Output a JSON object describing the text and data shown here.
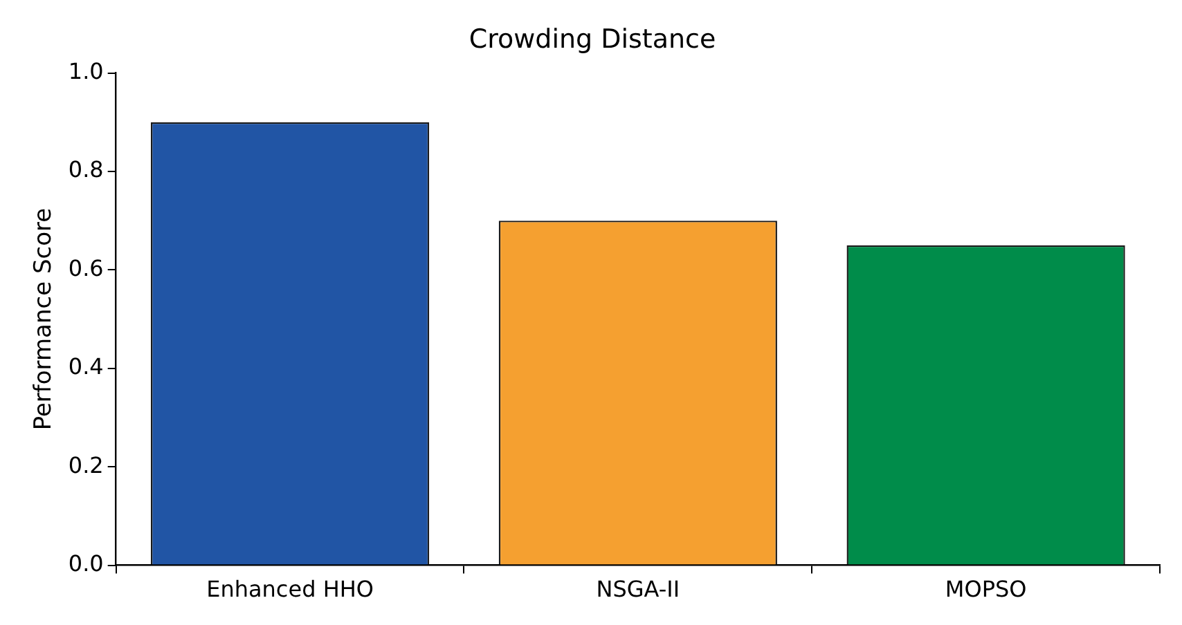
{
  "chart_data": {
    "type": "bar",
    "title": "Crowding Distance",
    "ylabel": "Performance Score",
    "categories": [
      "Enhanced HHO",
      "NSGA-II",
      "MOPSO"
    ],
    "values": [
      0.9,
      0.7,
      0.65
    ],
    "colors": [
      "#2155a5",
      "#f5a030",
      "#008c4a"
    ],
    "ylim": [
      0,
      1
    ],
    "yticks": [
      {
        "value": 0,
        "label": "0.0"
      },
      {
        "value": 0.2,
        "label": "0.2"
      },
      {
        "value": 0.4,
        "label": "0.4"
      },
      {
        "value": 0.6,
        "label": "0.6"
      },
      {
        "value": 0.8,
        "label": "0.8"
      },
      {
        "value": 1,
        "label": "1.0"
      }
    ],
    "grid": false,
    "legend": false
  }
}
